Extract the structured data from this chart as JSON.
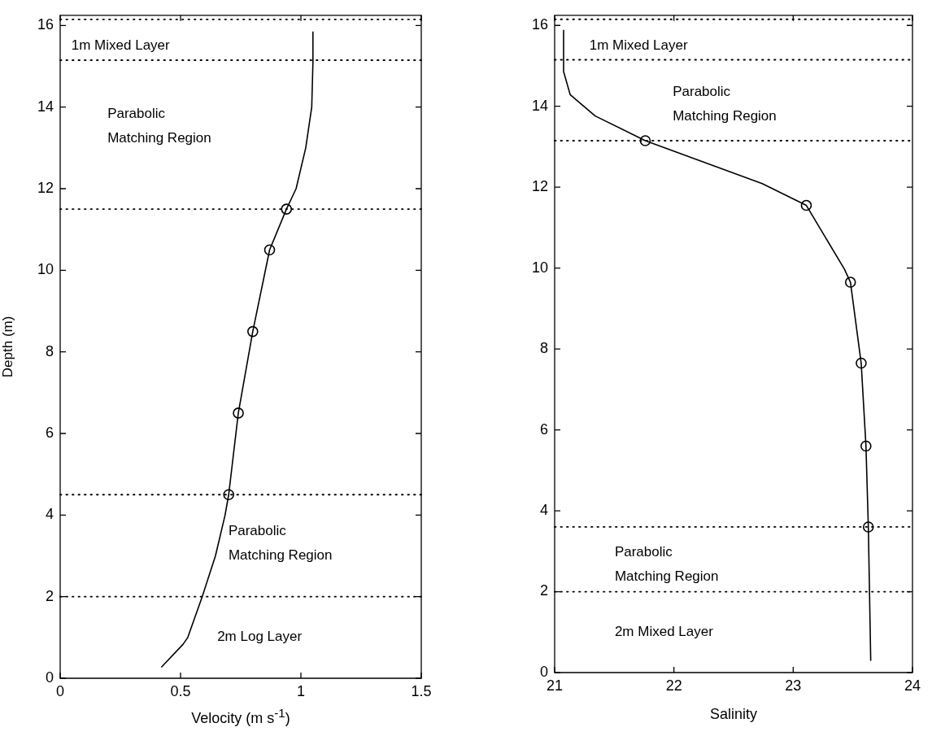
{
  "chart_data": [
    {
      "type": "line",
      "xlabel": "Velocity (m s$^{-1}$)",
      "ylabel": "Depth (m)",
      "xlim": [
        0,
        1.5
      ],
      "xticks": [
        0,
        0.5,
        1,
        1.5
      ],
      "ylim": [
        0,
        16.25
      ],
      "yticks": [
        0,
        2,
        4,
        6,
        8,
        10,
        12,
        14,
        16
      ],
      "grid": false,
      "legend": false,
      "series": [
        {
          "type": "line",
          "color": "#000000",
          "marker": "none",
          "line_style": "solid",
          "x": [
            0.42,
            0.51,
            0.53,
            0.59,
            0.645,
            0.685,
            0.7,
            0.74,
            0.8,
            0.87,
            0.94,
            0.98,
            1.02,
            1.045,
            1.05,
            1.05
          ],
          "values": [
            0.27,
            0.83,
            1.0,
            2.0,
            3.0,
            4.0,
            4.5,
            6.5,
            8.5,
            10.5,
            11.5,
            12.0,
            13.0,
            14.0,
            15.1,
            15.85
          ]
        },
        {
          "type": "scatter",
          "color": "#000000",
          "marker": "circle",
          "x": [
            0.7,
            0.74,
            0.8,
            0.87,
            0.94
          ],
          "values": [
            4.5,
            6.5,
            8.5,
            10.5,
            11.5
          ]
        }
      ],
      "ref_lines": [
        {
          "axis": "y",
          "value": 16.15,
          "color": "#000000",
          "line_style": "dotted"
        },
        {
          "axis": "y",
          "value": 15.15,
          "color": "#000000",
          "line_style": "dotted"
        },
        {
          "axis": "y",
          "value": 11.5,
          "color": "#000000",
          "line_style": "dotted"
        },
        {
          "axis": "y",
          "value": 4.5,
          "color": "#000000",
          "line_style": "dotted"
        },
        {
          "axis": "y",
          "value": 2,
          "color": "#000000",
          "line_style": "dotted"
        }
      ],
      "annotations": [
        "1m Mixed Layer",
        "Parabolic\nMatching Region",
        "Parabolic\nMatching Region",
        "2m Log Layer"
      ]
    },
    {
      "type": "line",
      "xlabel": "Salinity",
      "xlim": [
        21,
        24
      ],
      "xticks": [
        21,
        22,
        23,
        24
      ],
      "ylim": [
        0,
        16.25
      ],
      "yticks": [
        0,
        2,
        4,
        6,
        8,
        10,
        12,
        14,
        16
      ],
      "grid": false,
      "legend": false,
      "series": [
        {
          "type": "line",
          "color": "#000000",
          "marker": "none",
          "line_style": "solid",
          "x": [
            23.65,
            23.63,
            23.61,
            23.57,
            23.48,
            23.43,
            23.11,
            22.74,
            21.76,
            21.34,
            21.13,
            21.075,
            21.075
          ],
          "values": [
            0.29,
            3.6,
            5.6,
            7.65,
            9.65,
            9.97,
            11.55,
            12.09,
            13.15,
            13.76,
            14.29,
            14.86,
            15.89
          ]
        },
        {
          "type": "scatter",
          "color": "#000000",
          "marker": "circle",
          "x": [
            23.63,
            23.61,
            23.57,
            23.48,
            23.11,
            21.76
          ],
          "values": [
            3.6,
            5.6,
            7.65,
            9.65,
            11.55,
            13.15
          ]
        }
      ],
      "ref_lines": [
        {
          "axis": "y",
          "value": 16.15,
          "color": "#000000",
          "line_style": "dotted"
        },
        {
          "axis": "y",
          "value": 15.15,
          "color": "#000000",
          "line_style": "dotted"
        },
        {
          "axis": "y",
          "value": 13.15,
          "color": "#000000",
          "line_style": "dotted"
        },
        {
          "axis": "y",
          "value": 3.6,
          "color": "#000000",
          "line_style": "dotted"
        },
        {
          "axis": "y",
          "value": 2,
          "color": "#000000",
          "line_style": "dotted"
        }
      ],
      "annotations": [
        "1m Mixed Layer",
        "Parabolic\nMatching Region",
        "Parabolic\nMatching Region",
        "2m Mixed Layer"
      ]
    }
  ]
}
